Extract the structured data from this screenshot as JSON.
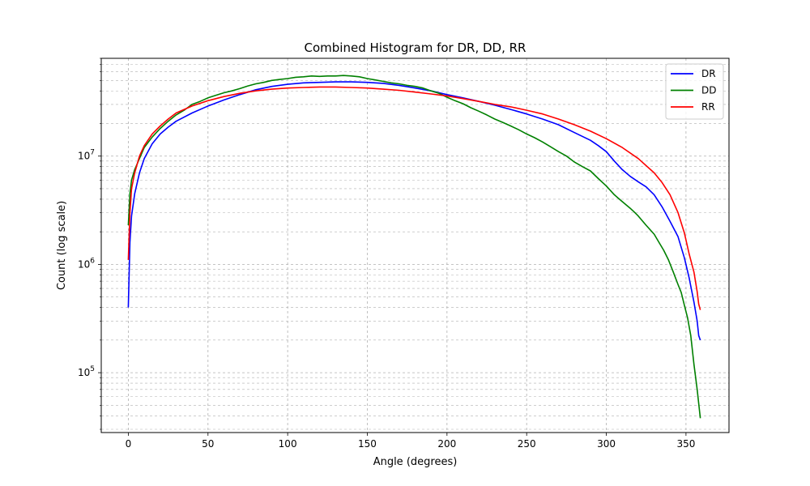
{
  "chart_data": {
    "type": "line",
    "title": "Combined Histogram for DR, DD, RR",
    "xlabel": "Angle (degrees)",
    "ylabel": "Count (log scale)",
    "xlim": [
      -17,
      377
    ],
    "ylim": [
      28000,
      80000000
    ],
    "yscale": "log",
    "grid": true,
    "legend_position": "top-right",
    "x_ticks": [
      0,
      50,
      100,
      150,
      200,
      250,
      300,
      350
    ],
    "y_ticks": [
      {
        "value": 100000,
        "base": "10",
        "exp": "5"
      },
      {
        "value": 1000000,
        "base": "10",
        "exp": "6"
      },
      {
        "value": 10000000,
        "base": "10",
        "exp": "7"
      }
    ],
    "series": [
      {
        "name": "DR",
        "color": "#0000ff",
        "points": [
          [
            0,
            400000
          ],
          [
            1,
            1600000
          ],
          [
            2,
            2800000
          ],
          [
            4,
            4500000
          ],
          [
            7,
            7000000
          ],
          [
            10,
            9500000
          ],
          [
            15,
            13000000
          ],
          [
            20,
            16000000
          ],
          [
            25,
            18500000
          ],
          [
            30,
            21000000
          ],
          [
            40,
            25000000
          ],
          [
            50,
            29000000
          ],
          [
            60,
            33000000
          ],
          [
            70,
            37000000
          ],
          [
            80,
            41000000
          ],
          [
            90,
            44000000
          ],
          [
            100,
            46000000
          ],
          [
            110,
            47500000
          ],
          [
            120,
            48000000
          ],
          [
            130,
            48500000
          ],
          [
            140,
            48500000
          ],
          [
            150,
            48000000
          ],
          [
            160,
            47000000
          ],
          [
            170,
            45000000
          ],
          [
            180,
            42500000
          ],
          [
            190,
            40000000
          ],
          [
            200,
            37000000
          ],
          [
            210,
            34500000
          ],
          [
            220,
            32000000
          ],
          [
            230,
            29500000
          ],
          [
            240,
            27000000
          ],
          [
            250,
            24500000
          ],
          [
            260,
            22000000
          ],
          [
            270,
            19500000
          ],
          [
            280,
            16500000
          ],
          [
            290,
            14000000
          ],
          [
            295,
            12500000
          ],
          [
            300,
            11000000
          ],
          [
            305,
            9000000
          ],
          [
            310,
            7500000
          ],
          [
            315,
            6500000
          ],
          [
            320,
            5800000
          ],
          [
            325,
            5200000
          ],
          [
            330,
            4400000
          ],
          [
            335,
            3400000
          ],
          [
            340,
            2500000
          ],
          [
            345,
            1800000
          ],
          [
            349,
            1150000
          ],
          [
            352,
            750000
          ],
          [
            355,
            450000
          ],
          [
            357,
            300000
          ],
          [
            358,
            220000
          ],
          [
            359,
            200000
          ]
        ]
      },
      {
        "name": "DD",
        "color": "#008000",
        "points": [
          [
            0,
            2300000
          ],
          [
            1,
            4500000
          ],
          [
            2,
            6000000
          ],
          [
            4,
            7500000
          ],
          [
            7,
            9500000
          ],
          [
            10,
            12000000
          ],
          [
            15,
            15000000
          ],
          [
            20,
            18000000
          ],
          [
            25,
            21000000
          ],
          [
            30,
            24000000
          ],
          [
            35,
            26500000
          ],
          [
            40,
            30000000
          ],
          [
            45,
            32000000
          ],
          [
            50,
            34500000
          ],
          [
            55,
            36500000
          ],
          [
            60,
            38500000
          ],
          [
            65,
            40000000
          ],
          [
            70,
            42000000
          ],
          [
            75,
            44500000
          ],
          [
            80,
            46500000
          ],
          [
            85,
            48000000
          ],
          [
            90,
            50000000
          ],
          [
            95,
            51000000
          ],
          [
            100,
            52000000
          ],
          [
            105,
            53500000
          ],
          [
            110,
            54000000
          ],
          [
            115,
            55000000
          ],
          [
            120,
            54500000
          ],
          [
            125,
            55000000
          ],
          [
            130,
            55000000
          ],
          [
            135,
            55500000
          ],
          [
            140,
            55000000
          ],
          [
            145,
            54000000
          ],
          [
            150,
            52000000
          ],
          [
            155,
            50500000
          ],
          [
            160,
            49000000
          ],
          [
            165,
            47500000
          ],
          [
            170,
            46500000
          ],
          [
            175,
            45000000
          ],
          [
            180,
            44000000
          ],
          [
            185,
            42500000
          ],
          [
            190,
            40000000
          ],
          [
            195,
            38000000
          ],
          [
            200,
            35000000
          ],
          [
            205,
            32500000
          ],
          [
            210,
            30500000
          ],
          [
            215,
            28000000
          ],
          [
            220,
            26000000
          ],
          [
            225,
            24000000
          ],
          [
            230,
            22000000
          ],
          [
            235,
            20500000
          ],
          [
            240,
            19000000
          ],
          [
            245,
            17500000
          ],
          [
            250,
            16000000
          ],
          [
            255,
            14800000
          ],
          [
            260,
            13500000
          ],
          [
            265,
            12200000
          ],
          [
            270,
            11000000
          ],
          [
            275,
            10000000
          ],
          [
            280,
            8800000
          ],
          [
            285,
            8000000
          ],
          [
            290,
            7300000
          ],
          [
            295,
            6200000
          ],
          [
            300,
            5300000
          ],
          [
            305,
            4400000
          ],
          [
            310,
            3800000
          ],
          [
            315,
            3300000
          ],
          [
            318,
            3000000
          ],
          [
            320,
            2800000
          ],
          [
            325,
            2300000
          ],
          [
            330,
            1900000
          ],
          [
            333,
            1600000
          ],
          [
            336,
            1350000
          ],
          [
            339,
            1100000
          ],
          [
            342,
            850000
          ],
          [
            345,
            650000
          ],
          [
            347,
            550000
          ],
          [
            349,
            420000
          ],
          [
            351,
            320000
          ],
          [
            353,
            220000
          ],
          [
            355,
            120000
          ],
          [
            357,
            70000
          ],
          [
            359,
            38000
          ]
        ]
      },
      {
        "name": "RR",
        "color": "#ff0000",
        "points": [
          [
            0,
            1100000
          ],
          [
            1,
            3000000
          ],
          [
            2,
            5000000
          ],
          [
            4,
            7000000
          ],
          [
            7,
            10000000
          ],
          [
            10,
            12500000
          ],
          [
            15,
            16000000
          ],
          [
            20,
            19000000
          ],
          [
            25,
            22000000
          ],
          [
            30,
            25000000
          ],
          [
            40,
            29000000
          ],
          [
            50,
            32500000
          ],
          [
            60,
            35500000
          ],
          [
            70,
            38000000
          ],
          [
            80,
            40000000
          ],
          [
            90,
            41500000
          ],
          [
            100,
            42500000
          ],
          [
            110,
            43000000
          ],
          [
            120,
            43500000
          ],
          [
            130,
            43500000
          ],
          [
            140,
            43000000
          ],
          [
            150,
            42500000
          ],
          [
            160,
            41500000
          ],
          [
            170,
            40500000
          ],
          [
            180,
            39000000
          ],
          [
            190,
            37500000
          ],
          [
            200,
            36000000
          ],
          [
            210,
            34000000
          ],
          [
            220,
            32000000
          ],
          [
            230,
            30000000
          ],
          [
            240,
            28500000
          ],
          [
            250,
            26500000
          ],
          [
            260,
            24500000
          ],
          [
            270,
            22000000
          ],
          [
            280,
            19500000
          ],
          [
            290,
            17000000
          ],
          [
            300,
            14500000
          ],
          [
            310,
            12000000
          ],
          [
            320,
            9500000
          ],
          [
            330,
            7000000
          ],
          [
            335,
            5700000
          ],
          [
            340,
            4400000
          ],
          [
            345,
            3000000
          ],
          [
            349,
            1950000
          ],
          [
            352,
            1250000
          ],
          [
            355,
            850000
          ],
          [
            357,
            560000
          ],
          [
            358,
            430000
          ],
          [
            359,
            380000
          ]
        ]
      }
    ]
  }
}
